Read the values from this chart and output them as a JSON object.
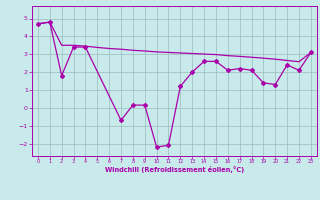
{
  "line1_x": [
    0,
    1,
    2,
    3,
    4,
    7,
    8,
    9,
    10,
    11,
    12,
    13,
    14,
    15,
    16,
    17,
    18,
    19,
    20,
    21,
    22,
    23
  ],
  "line1_y": [
    4.7,
    4.8,
    1.8,
    3.4,
    3.4,
    -0.7,
    0.15,
    0.15,
    -2.2,
    -2.1,
    1.2,
    2.0,
    2.6,
    2.6,
    2.1,
    2.2,
    2.1,
    1.4,
    1.3,
    2.4,
    2.1,
    3.1
  ],
  "line2_x": [
    0,
    1,
    2,
    3,
    4,
    5,
    6,
    7,
    8,
    9,
    10,
    11,
    12,
    13,
    14,
    15,
    16,
    17,
    18,
    19,
    20,
    21,
    22,
    23
  ],
  "line2_y": [
    4.7,
    4.8,
    3.5,
    3.5,
    3.45,
    3.38,
    3.32,
    3.28,
    3.22,
    3.18,
    3.13,
    3.1,
    3.07,
    3.04,
    3.01,
    2.98,
    2.92,
    2.88,
    2.83,
    2.78,
    2.72,
    2.65,
    2.58,
    3.1
  ],
  "line_color": "#aa00aa",
  "bg_color": "#c8eaea",
  "grid_color": "#99bbbb",
  "xlabel": "Windchill (Refroidissement éolien,°C)",
  "xlim": [
    -0.5,
    23.5
  ],
  "ylim": [
    -2.7,
    5.7
  ],
  "yticks": [
    -2,
    -1,
    0,
    1,
    2,
    3,
    4,
    5
  ],
  "xticks": [
    0,
    1,
    2,
    3,
    4,
    5,
    6,
    7,
    8,
    9,
    10,
    11,
    12,
    13,
    14,
    15,
    16,
    17,
    18,
    19,
    20,
    21,
    22,
    23
  ]
}
